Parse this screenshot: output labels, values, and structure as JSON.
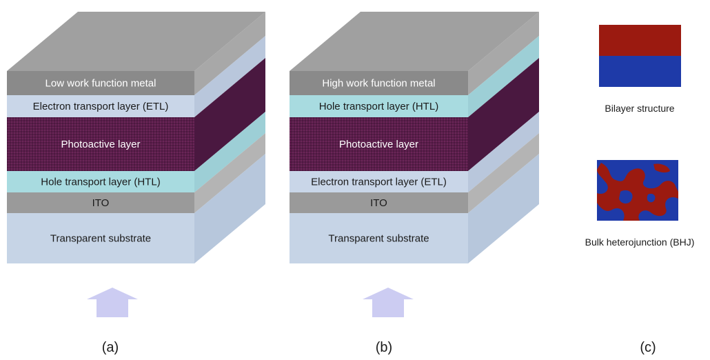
{
  "panel_a": {
    "caption": "(a)",
    "layers": [
      {
        "label": "Low work function metal",
        "color": "#8a8a8a",
        "side": "#a8a8a8",
        "text": "white"
      },
      {
        "label": "Electron transport layer (ETL)",
        "color": "#c9d6e8",
        "side": "#b9c7dc",
        "text": "dark"
      },
      {
        "label": "Photoactive layer",
        "color": "#5a1e4a",
        "side": "#4a1840",
        "text": "white"
      },
      {
        "label": "Hole transport layer (HTL)",
        "color": "#a8dbe0",
        "side": "#9dcfd6",
        "text": "dark"
      },
      {
        "label": "ITO",
        "color": "#9a9a9a",
        "side": "#b4b4b4",
        "text": "dark"
      },
      {
        "label": "Transparent substrate",
        "color": "#c6d4e6",
        "side": "#b7c7dc",
        "text": "dark"
      }
    ]
  },
  "panel_b": {
    "caption": "(b)",
    "layers": [
      {
        "label": "High work function metal",
        "color": "#8a8a8a",
        "side": "#a8a8a8",
        "text": "white"
      },
      {
        "label": "Hole transport layer (HTL)",
        "color": "#a8dbe0",
        "side": "#9dcfd6",
        "text": "dark"
      },
      {
        "label": "Photoactive layer",
        "color": "#5a1e4a",
        "side": "#4a1840",
        "text": "white"
      },
      {
        "label": "Electron transport layer (ETL)",
        "color": "#c9d6e8",
        "side": "#b9c7dc",
        "text": "dark"
      },
      {
        "label": "ITO",
        "color": "#9a9a9a",
        "side": "#b4b4b4",
        "text": "dark"
      },
      {
        "label": "Transparent substrate",
        "color": "#c6d4e6",
        "side": "#b7c7dc",
        "text": "dark"
      }
    ]
  },
  "panel_c": {
    "caption": "(c)",
    "bilayer_label": "Bilayer structure",
    "bhj_label": "Bulk heterojunction (BHJ)",
    "colors": {
      "red": "#9b1a10",
      "blue": "#1e3aa8"
    }
  },
  "colors": {
    "top_face": "#a0a0a0",
    "arrow": "#ccccf2"
  }
}
